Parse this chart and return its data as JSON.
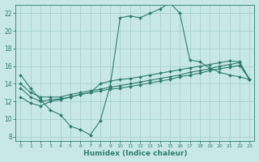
{
  "title": "",
  "xlabel": "Humidex (Indice chaleur)",
  "ylabel": "",
  "background_color": "#c8e8e8",
  "grid_color": "#a8d0d0",
  "line_color": "#2e7d6e",
  "xlim": [
    -0.5,
    23.5
  ],
  "ylim": [
    7.5,
    23.0
  ],
  "xticks": [
    0,
    1,
    2,
    3,
    4,
    5,
    6,
    7,
    8,
    9,
    10,
    11,
    12,
    13,
    14,
    15,
    16,
    17,
    18,
    19,
    20,
    21,
    22,
    23
  ],
  "yticks": [
    8,
    10,
    12,
    14,
    16,
    18,
    20,
    22
  ],
  "series": [
    {
      "x": [
        0,
        1,
        2,
        3,
        4,
        5,
        6,
        7,
        8,
        9,
        10,
        11,
        12,
        13,
        14,
        15,
        16,
        17,
        18,
        19,
        20,
        21,
        22,
        23
      ],
      "y": [
        15.0,
        13.5,
        12.2,
        11.0,
        10.5,
        9.2,
        8.8,
        8.2,
        9.8,
        13.8,
        21.5,
        21.7,
        21.5,
        22.0,
        22.5,
        23.2,
        22.0,
        16.7,
        16.5,
        15.8,
        15.3,
        15.0,
        14.8,
        14.5
      ]
    },
    {
      "x": [
        0,
        1,
        2,
        3,
        4,
        5,
        6,
        7,
        8,
        9,
        10,
        11,
        12,
        13,
        14,
        15,
        16,
        17,
        18,
        19,
        20,
        21,
        22,
        23
      ],
      "y": [
        14.0,
        13.0,
        12.5,
        12.5,
        12.5,
        12.8,
        13.0,
        13.2,
        13.4,
        13.6,
        13.8,
        14.0,
        14.2,
        14.4,
        14.6,
        14.8,
        15.0,
        15.3,
        15.5,
        15.7,
        16.0,
        16.2,
        16.4,
        14.5
      ]
    },
    {
      "x": [
        0,
        1,
        2,
        3,
        4,
        5,
        6,
        7,
        8,
        9,
        10,
        11,
        12,
        13,
        14,
        15,
        16,
        17,
        18,
        19,
        20,
        21,
        22,
        23
      ],
      "y": [
        13.5,
        12.5,
        12.0,
        12.2,
        12.3,
        12.5,
        12.8,
        13.0,
        13.2,
        13.4,
        13.5,
        13.7,
        13.9,
        14.1,
        14.3,
        14.5,
        14.8,
        15.0,
        15.2,
        15.5,
        15.7,
        15.9,
        16.1,
        14.5
      ]
    },
    {
      "x": [
        0,
        1,
        2,
        3,
        4,
        5,
        6,
        7,
        8,
        9,
        10,
        11,
        12,
        13,
        14,
        15,
        16,
        17,
        18,
        19,
        20,
        21,
        22,
        23
      ],
      "y": [
        12.5,
        11.8,
        11.5,
        12.0,
        12.2,
        12.5,
        12.8,
        13.0,
        14.0,
        14.3,
        14.5,
        14.6,
        14.8,
        15.0,
        15.2,
        15.4,
        15.6,
        15.8,
        16.0,
        16.2,
        16.4,
        16.6,
        16.5,
        14.5
      ]
    }
  ]
}
